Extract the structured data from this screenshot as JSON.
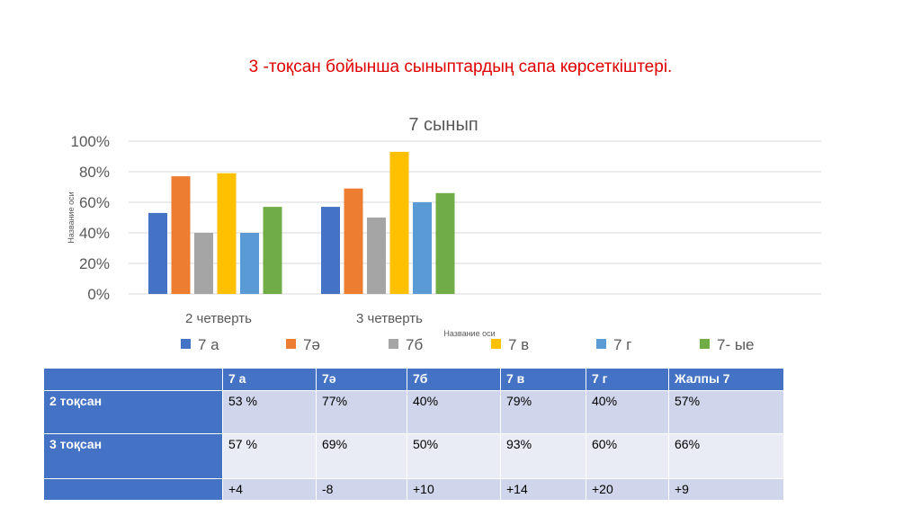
{
  "slide": {
    "title": "3 -тоқсан бойынша сыныптардың сапа көрсеткіштері."
  },
  "chart_data": {
    "type": "bar",
    "title": "7 сынып",
    "categories": [
      "2 четверть",
      "3 четверть"
    ],
    "xlabel": "Название оси",
    "ylabel": "Название оси",
    "ylim": [
      0,
      100
    ],
    "y_ticks": [
      "0%",
      "20%",
      "40%",
      "60%",
      "80%",
      "100%"
    ],
    "grid": true,
    "legend_position": "bottom",
    "series": [
      {
        "name": "7 а",
        "color": "#4472c4",
        "values": [
          53,
          57
        ]
      },
      {
        "name": "7ә",
        "color": "#ed7d31",
        "values": [
          77,
          69
        ]
      },
      {
        "name": "7б",
        "color": "#a5a5a5",
        "values": [
          40,
          50
        ]
      },
      {
        "name": "7 в",
        "color": "#ffc000",
        "values": [
          79,
          93
        ]
      },
      {
        "name": "7 г",
        "color": "#5b9bd5",
        "values": [
          40,
          60
        ]
      },
      {
        "name": "7- ые",
        "color": "#70ad47",
        "values": [
          57,
          66
        ]
      }
    ]
  },
  "table": {
    "header": [
      "",
      "7 а",
      "7ә",
      "7б",
      "7 в",
      "7 г",
      "Жалпы 7"
    ],
    "rows": [
      [
        "2 тоқсан",
        "53 %",
        "77%",
        "40%",
        "79%",
        "40%",
        "57%"
      ],
      [
        "3 тоқсан",
        "57 %",
        "69%",
        "50%",
        "93%",
        "60%",
        "66%"
      ],
      [
        "",
        "+4",
        "-8",
        "+10",
        "+14",
        "+20",
        "+9"
      ]
    ]
  }
}
